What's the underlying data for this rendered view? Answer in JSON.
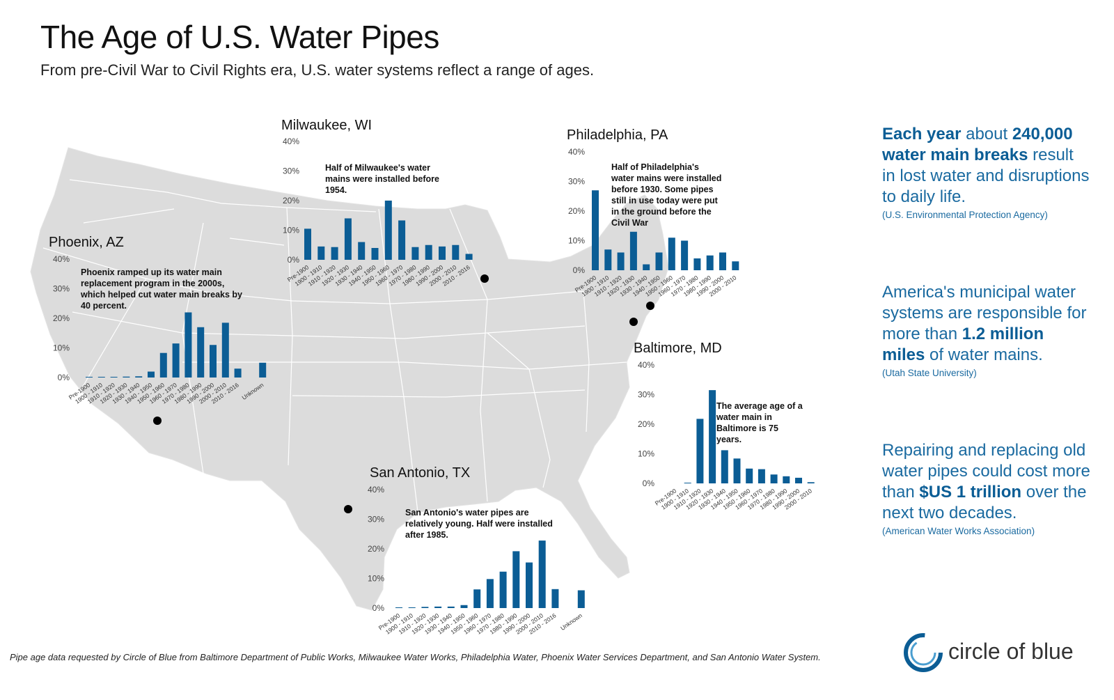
{
  "header": {
    "title": "The Age of U.S. Water Pipes",
    "subtitle": "From pre-Civil War to Civil Rights era, U.S. water systems reflect a range of ages."
  },
  "sidebar": {
    "stats": [
      {
        "parts": [
          {
            "text": "Each year",
            "bold": true
          },
          {
            "text": " about ",
            "bold": false
          },
          {
            "text": "240,000 water main breaks",
            "bold": true
          },
          {
            "text": " result in lost water and disruptions to daily life.",
            "bold": false
          }
        ],
        "source": "(U.S. Environmental Protection Agency)"
      },
      {
        "parts": [
          {
            "text": "America's municipal water systems are responsible for more than ",
            "bold": false
          },
          {
            "text": "1.2 million miles",
            "bold": true
          },
          {
            "text": " of water mains.",
            "bold": false
          }
        ],
        "source": "(Utah State University)"
      },
      {
        "parts": [
          {
            "text": "Repairing and replacing old water pipes could cost more than ",
            "bold": false
          },
          {
            "text": "$US 1 trillion",
            "bold": true
          },
          {
            "text": " over the next two decades.",
            "bold": false
          }
        ],
        "source": "(American Water Works Association)"
      }
    ]
  },
  "footnote": "Pipe age data requested by Circle of Blue from Baltimore Department of Public Works, Milwaukee Water Works, Philadelphia Water, Phoenix Water Services Department, and San Antonio Water System.",
  "logo": {
    "text": "circle of blue"
  },
  "colors": {
    "bar": "#0b5d95",
    "map": "#dcdcdc",
    "map_border": "#ffffff",
    "accent_text": "#1a6aa0"
  },
  "chart_data": [
    {
      "type": "bar",
      "title": "Milwaukee, WI",
      "annotation": "Half of Milwaukee's water mains were installed before 1954.",
      "categories": [
        "Pre-1900",
        "1900 - 1910",
        "1910 - 1920",
        "1920 - 1930",
        "1930 - 1940",
        "1940 - 1950",
        "1950 - 1960",
        "1960 - 1970",
        "1970 - 1980",
        "1980 - 1990",
        "1990 - 2000",
        "2000 - 2010",
        "2010 - 2016"
      ],
      "values": [
        10.5,
        4.5,
        4.3,
        14,
        6,
        4,
        20,
        13.3,
        4.3,
        5,
        4.5,
        5,
        2
      ],
      "yticks": [
        "0%",
        "10%",
        "20%",
        "30%",
        "40%"
      ],
      "ylim": [
        0,
        40
      ]
    },
    {
      "type": "bar",
      "title": "Philadelphia, PA",
      "annotation": "Half of Philadelphia's water mains were installed before 1930. Some pipes still in use today were put in the ground before the Civil War",
      "categories": [
        "Pre-1900",
        "1900 - 1910",
        "1910 - 1920",
        "1920 - 1930",
        "1930 - 1940",
        "1940 - 1950",
        "1950 - 1960",
        "1960 - 1970",
        "1970 - 1980",
        "1980 - 1990",
        "1990 - 2000",
        "2000 - 2010"
      ],
      "values": [
        27,
        7,
        6,
        13,
        2,
        6,
        11,
        10,
        4,
        5,
        6,
        3
      ],
      "yticks": [
        "0%",
        "10%",
        "20%",
        "30%",
        "40%"
      ],
      "ylim": [
        0,
        40
      ]
    },
    {
      "type": "bar",
      "title": "Phoenix, AZ",
      "annotation": "Phoenix ramped up its water main replacement program in the 2000s, which helped cut water main breaks by 40 percent.",
      "categories": [
        "Pre-1900",
        "1900 - 1910",
        "1910 - 1920",
        "1920 - 1930",
        "1930 - 1940",
        "1940 - 1950",
        "1950 - 1960",
        "1960 - 1970",
        "1970 - 1980",
        "1980 - 1990",
        "1990 - 2000",
        "2000 - 2010",
        "2010 - 2016",
        "",
        "Unknown"
      ],
      "values": [
        0.1,
        0.1,
        0.2,
        0.3,
        0.4,
        2,
        8.3,
        11.5,
        22,
        17,
        11,
        18.5,
        3,
        0,
        5
      ],
      "yticks": [
        "0%",
        "10%",
        "20%",
        "30%",
        "40%"
      ],
      "ylim": [
        0,
        40
      ]
    },
    {
      "type": "bar",
      "title": "Baltimore, MD",
      "annotation": "The average age of a water main in Baltimore is 75 years.",
      "categories": [
        "Pre-1900",
        "1900 - 1910",
        "1910 - 1920",
        "1920 - 1930",
        "1930 - 1940",
        "1940 - 1950",
        "1950 - 1960",
        "1960 - 1970",
        "1970 - 1980",
        "1980 - 1990",
        "1990 - 2000",
        "2000 - 2010"
      ],
      "values": [
        0,
        0.2,
        21.8,
        31.5,
        11.2,
        8.4,
        5,
        4.8,
        3,
        2.4,
        1.9,
        0.4
      ],
      "yticks": [
        "0%",
        "10%",
        "20%",
        "30%",
        "40%"
      ],
      "ylim": [
        0,
        40
      ]
    },
    {
      "type": "bar",
      "title": "San Antonio, TX",
      "annotation": "San Antonio's water pipes are relatively young. Half were installed after 1985.",
      "categories": [
        "Pre-1900",
        "1900 - 1910",
        "1910 - 1920",
        "1920 - 1930",
        "1930 - 1940",
        "1940 - 1950",
        "1950 - 1960",
        "1960 - 1970",
        "1970 - 1980",
        "1980 - 1990",
        "1990 - 2000",
        "2000 - 2010",
        "2010 - 2016",
        "",
        "Unknown"
      ],
      "values": [
        0.2,
        0.2,
        0.4,
        0.5,
        0.5,
        1,
        6.3,
        9.8,
        12.3,
        19.2,
        15.4,
        22.8,
        6.4,
        0,
        6
      ],
      "yticks": [
        "0%",
        "10%",
        "20%",
        "30%",
        "40%"
      ],
      "ylim": [
        0,
        40
      ]
    }
  ]
}
